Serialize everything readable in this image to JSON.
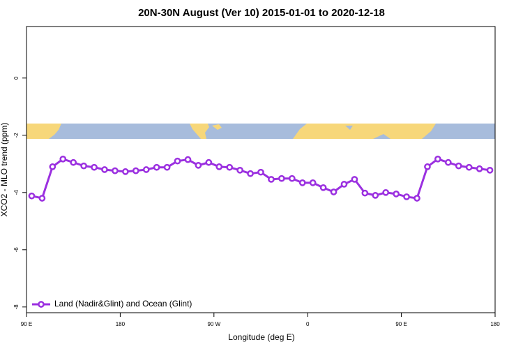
{
  "chart_data": {
    "type": "line",
    "title": "20N-30N August (Ver 10)   2015-01-01 to 2020-12-18",
    "x_label": "Longitude (deg E)",
    "y_label": "XCO2 - MLO trend (ppm)",
    "xlim": [
      90,
      540
    ],
    "xticks": [
      {
        "value": 90,
        "label": "90 E"
      },
      180,
      {
        "value": 270,
        "label": "90 W"
      },
      {
        "value": 360,
        "label": "0"
      },
      {
        "value": 450,
        "label": "90 E"
      },
      {
        "value": 540,
        "label": "180"
      }
    ],
    "ylim": [
      -8.2,
      1.8
    ],
    "yticks": [
      0,
      -2,
      -4,
      -6,
      -8
    ],
    "legend": "bottom-left",
    "x": [
      95,
      105,
      115,
      125,
      135,
      145,
      155,
      165,
      175,
      185,
      195,
      205,
      215,
      225,
      235,
      245,
      255,
      265,
      275,
      285,
      295,
      305,
      315,
      325,
      335,
      345,
      355,
      365,
      375,
      385,
      395,
      405,
      415,
      425,
      435,
      445,
      455,
      465,
      475,
      485,
      495,
      505,
      515,
      525,
      535
    ],
    "series": [
      {
        "name": "Land (Nadir&Glint) and Ocean (Glint)",
        "color": "#9b30e0",
        "values": [
          -4.12,
          -4.2,
          -3.1,
          -2.83,
          -2.95,
          -3.07,
          -3.12,
          -3.2,
          -3.24,
          -3.27,
          -3.24,
          -3.2,
          -3.12,
          -3.12,
          -2.9,
          -2.85,
          -3.05,
          -2.95,
          -3.1,
          -3.12,
          -3.22,
          -3.34,
          -3.29,
          -3.54,
          -3.51,
          -3.51,
          -3.66,
          -3.66,
          -3.83,
          -3.98,
          -3.71,
          -3.54,
          -4.02,
          -4.1,
          -4.0,
          -4.05,
          -4.15,
          -4.2,
          -3.1,
          -2.83,
          -2.95,
          -3.07,
          -3.12,
          -3.17,
          -3.22
        ]
      }
    ]
  }
}
